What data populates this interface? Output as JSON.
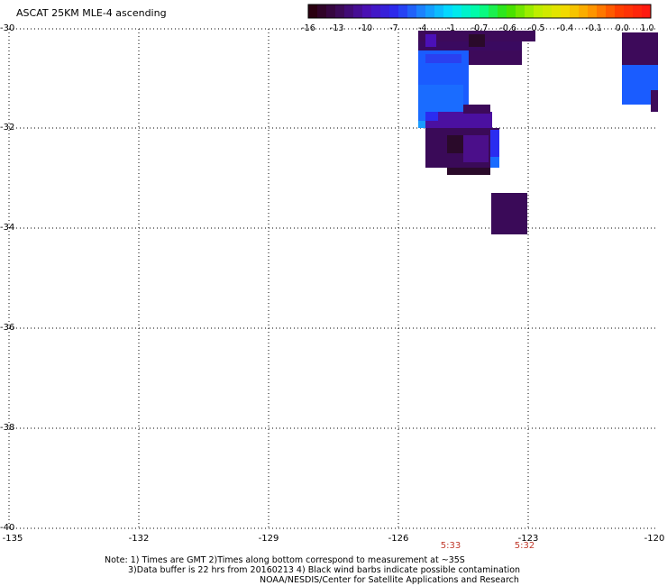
{
  "title": "ASCAT 25KM MLE-4 ascending",
  "colorbar": {
    "labels": [
      "-16",
      "-13",
      "-10",
      "-7",
      "-4",
      "-1",
      "-0.7",
      "-0.6",
      "-0.5",
      "-0.4",
      "-0.1",
      "0.0",
      "1.0"
    ],
    "colors": [
      "#2a0010",
      "#3d0a5a",
      "#4b10b8",
      "#2a2cf0",
      "#1a8cff",
      "#00e4ff",
      "#00ff9a",
      "#38e000",
      "#b8f000",
      "#f0e000",
      "#ff9a00",
      "#ff4000",
      "#ff1a10"
    ]
  },
  "map": {
    "lat_labels": [
      "-30",
      "-32",
      "-34",
      "-36",
      "-38",
      "-40"
    ],
    "lon_labels": [
      "-135",
      "-132",
      "-129",
      "-126",
      "-123",
      "-120"
    ],
    "lat_range": [
      -40,
      -30
    ],
    "lon_range": [
      -135,
      -120
    ]
  },
  "times": [
    "5:33",
    "5:32"
  ],
  "notes": [
    "Note: 1) Times are GMT 2)Times along bottom correspond to measurement at ~35S",
    "3)Data buffer is 22 hrs from 20160213 4) Black wind barbs indicate possible contamination",
    "NOAA/NESDIS/Center for Satellite Applications and Research"
  ]
}
